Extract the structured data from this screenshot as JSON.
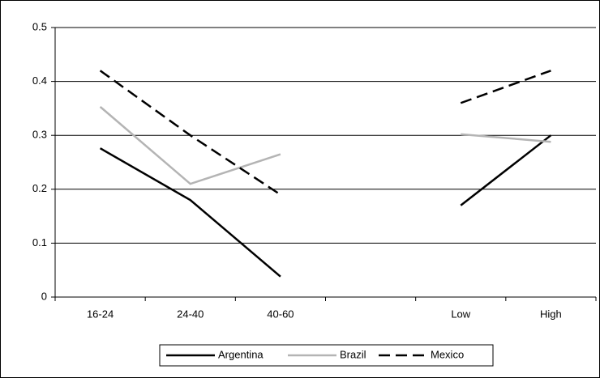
{
  "chart_data": {
    "type": "line",
    "categories": [
      "16-24",
      "24-40",
      "40-60",
      null,
      "Low",
      "High"
    ],
    "series": [
      {
        "name": "Argentina",
        "color": "#000000",
        "dash": "solid",
        "values": [
          0.276,
          0.18,
          0.038,
          null,
          0.17,
          0.3
        ]
      },
      {
        "name": "Brazil",
        "color": "#b4b4b4",
        "dash": "solid",
        "values": [
          0.353,
          0.21,
          0.265,
          null,
          0.302,
          0.288
        ]
      },
      {
        "name": "Mexico",
        "color": "#000000",
        "dash": "dashed",
        "values": [
          0.42,
          0.3,
          0.19,
          null,
          0.36,
          0.42
        ]
      }
    ],
    "ylim": [
      0,
      0.5
    ],
    "yticks": [
      0,
      0.1,
      0.2,
      0.3,
      0.4,
      0.5
    ],
    "grid": true,
    "legend": "bottom"
  }
}
